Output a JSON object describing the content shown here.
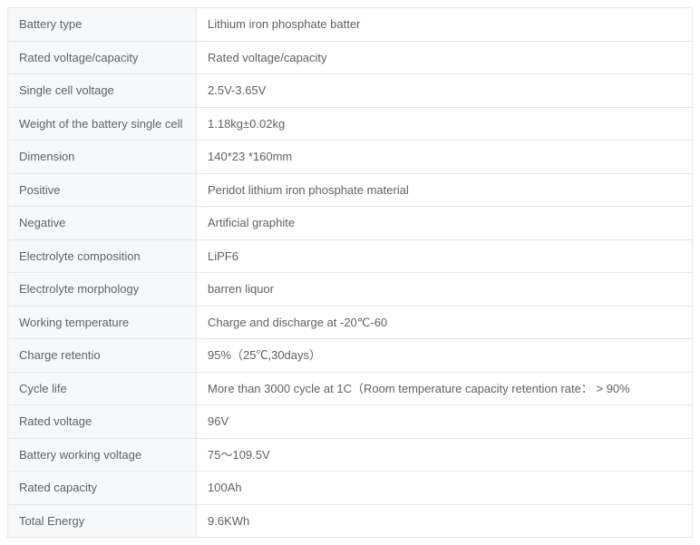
{
  "table": {
    "type": "table",
    "label_bg_color": "#f7f8fa",
    "value_bg_color": "#ffffff",
    "border_color": "#e4e7ed",
    "text_color": "#606266",
    "font_size": 13,
    "label_col_width": 208,
    "total_width": 756,
    "rows": [
      {
        "label": "Battery type",
        "value": "Lithium iron phosphate batter"
      },
      {
        "label": "Rated voltage/capacity",
        "value": "Rated voltage/capacity"
      },
      {
        "label": "Single cell voltage",
        "value": "2.5V-3.65V"
      },
      {
        "label": "Weight of the battery single cell",
        "value": "1.18kg±0.02kg"
      },
      {
        "label": "Dimension",
        "value": "140*23 *160mm"
      },
      {
        "label": "Positive",
        "value": "Peridot lithium iron phosphate material"
      },
      {
        "label": "Negative",
        "value": "Artificial graphite"
      },
      {
        "label": "Electrolyte composition",
        "value": "LiPF6"
      },
      {
        "label": "Electrolyte morphology",
        "value": "barren liquor"
      },
      {
        "label": "Working temperature",
        "value": "Charge and discharge at -20℃-60"
      },
      {
        "label": "Charge retentio",
        "value": "95%（25℃,30days）"
      },
      {
        "label": "Cycle life",
        "value": "More than 3000 cycle at 1C（Room temperature capacity retention rate： > 90%"
      },
      {
        "label": "Rated voltage",
        "value": "96V"
      },
      {
        "label": "Battery working voltage",
        "value": "75～109.5V"
      },
      {
        "label": "Rated capacity",
        "value": "100Ah"
      },
      {
        "label": "Total Energy",
        "value": "9.6KWh"
      }
    ]
  }
}
